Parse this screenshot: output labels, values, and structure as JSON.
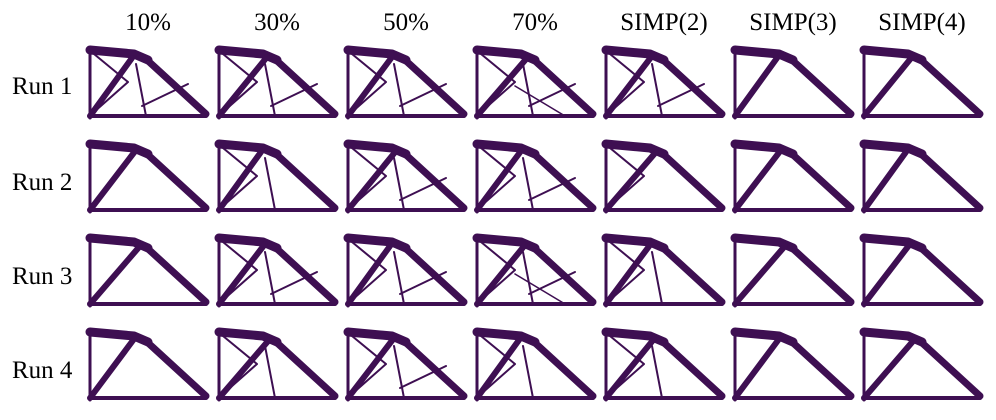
{
  "figure": {
    "column_headers": [
      "10%",
      "30%",
      "50%",
      "70%",
      "SIMP(2)",
      "SIMP(3)",
      "SIMP(4)"
    ],
    "row_labels": [
      "Run 1",
      "Run 2",
      "Run 3",
      "Run 4"
    ],
    "colors": {
      "material": "#3e0f52",
      "background": "#ffffff"
    },
    "grid": {
      "rows": 4,
      "columns": 7,
      "internal_members": [
        [
          3,
          3,
          3,
          4,
          3,
          0,
          0
        ],
        [
          0,
          2,
          3,
          3,
          1,
          0,
          0
        ],
        [
          0,
          3,
          3,
          4,
          2,
          0,
          0
        ],
        [
          0,
          2,
          3,
          2,
          2,
          0,
          0
        ]
      ]
    }
  }
}
